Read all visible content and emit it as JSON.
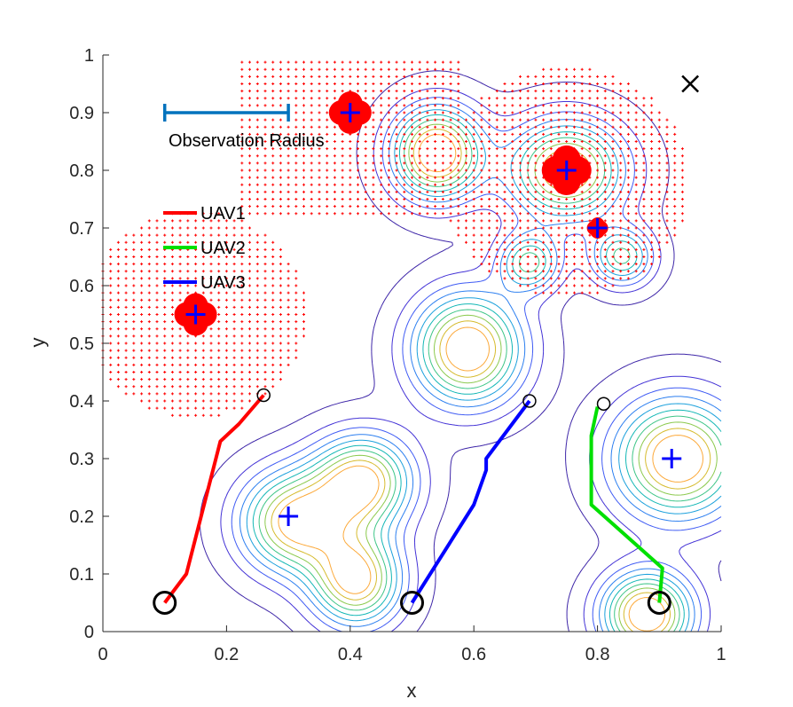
{
  "chart_data": {
    "type": "line",
    "title": "",
    "xlabel": "x",
    "ylabel": "y",
    "xlim": [
      0,
      1
    ],
    "ylim": [
      0,
      1
    ],
    "grid": false,
    "xticks": [
      "0",
      "0.2",
      "0.4",
      "0.6",
      "0.8",
      "1"
    ],
    "yticks": [
      "0",
      "0.1",
      "0.2",
      "0.3",
      "0.4",
      "0.5",
      "0.6",
      "0.7",
      "0.8",
      "0.9",
      "1"
    ],
    "legend": {
      "placement": "upper-left",
      "entries": [
        "UAV1",
        "UAV2",
        "UAV3"
      ]
    },
    "series": [
      {
        "name": "UAV1",
        "color": "#ff0000",
        "points": [
          [
            0.1,
            0.05
          ],
          [
            0.135,
            0.1
          ],
          [
            0.19,
            0.33
          ],
          [
            0.22,
            0.36
          ],
          [
            0.26,
            0.41
          ]
        ]
      },
      {
        "name": "UAV2",
        "color": "#00e000",
        "points": [
          [
            0.9,
            0.05
          ],
          [
            0.905,
            0.11
          ],
          [
            0.79,
            0.22
          ],
          [
            0.79,
            0.34
          ],
          [
            0.8,
            0.39
          ]
        ]
      },
      {
        "name": "UAV3",
        "color": "#0000ff",
        "points": [
          [
            0.5,
            0.05
          ],
          [
            0.6,
            0.22
          ],
          [
            0.62,
            0.28
          ],
          [
            0.62,
            0.3
          ],
          [
            0.69,
            0.4
          ]
        ]
      }
    ],
    "start_markers": [
      [
        0.1,
        0.05
      ],
      [
        0.5,
        0.05
      ],
      [
        0.9,
        0.05
      ]
    ],
    "end_markers": [
      [
        0.26,
        0.41
      ],
      [
        0.69,
        0.4
      ],
      [
        0.81,
        0.395
      ]
    ],
    "targets": [
      [
        0.4,
        0.9
      ],
      [
        0.75,
        0.8
      ],
      [
        0.8,
        0.7
      ],
      [
        0.15,
        0.55
      ],
      [
        0.3,
        0.2
      ],
      [
        0.92,
        0.3
      ]
    ],
    "observed_targets": [
      [
        0.4,
        0.9
      ],
      [
        0.75,
        0.8
      ],
      [
        0.8,
        0.7
      ],
      [
        0.15,
        0.55
      ]
    ],
    "x_marker": [
      0.95,
      0.95
    ],
    "observation_radius": {
      "label": "Observation Radius",
      "x1": 0.1,
      "x2": 0.3,
      "y": 0.9,
      "color": "#0072bd"
    },
    "contour_peaks": [
      {
        "x": 0.54,
        "y": 0.83,
        "sx": 0.05,
        "sy": 0.055,
        "a": 1.0
      },
      {
        "x": 0.75,
        "y": 0.8,
        "sx": 0.065,
        "sy": 0.06,
        "a": 0.9
      },
      {
        "x": 0.69,
        "y": 0.64,
        "sx": 0.035,
        "sy": 0.035,
        "a": 0.6
      },
      {
        "x": 0.84,
        "y": 0.65,
        "sx": 0.035,
        "sy": 0.035,
        "a": 0.6
      },
      {
        "x": 0.59,
        "y": 0.49,
        "sx": 0.06,
        "sy": 0.065,
        "a": 1.0
      },
      {
        "x": 0.31,
        "y": 0.19,
        "sx": 0.06,
        "sy": 0.06,
        "a": 0.9
      },
      {
        "x": 0.42,
        "y": 0.26,
        "sx": 0.055,
        "sy": 0.055,
        "a": 0.9
      },
      {
        "x": 0.41,
        "y": 0.09,
        "sx": 0.05,
        "sy": 0.055,
        "a": 0.9
      },
      {
        "x": 0.93,
        "y": 0.3,
        "sx": 0.07,
        "sy": 0.07,
        "a": 1.0
      },
      {
        "x": 0.88,
        "y": 0.03,
        "sx": 0.05,
        "sy": 0.05,
        "a": 1.0
      }
    ],
    "grid_regions": [
      {
        "x": [
          0.22,
          0.58
        ],
        "y": [
          0.72,
          0.99
        ]
      },
      {
        "x": 0.15,
        "y": 0.55,
        "r": 0.18
      },
      {
        "x": 0.75,
        "y": 0.78,
        "r": 0.2
      }
    ],
    "colors": {
      "marker": "#0000ff",
      "grid_dot": "#ff0000",
      "circle": "#000000",
      "axes": "#262626"
    }
  }
}
